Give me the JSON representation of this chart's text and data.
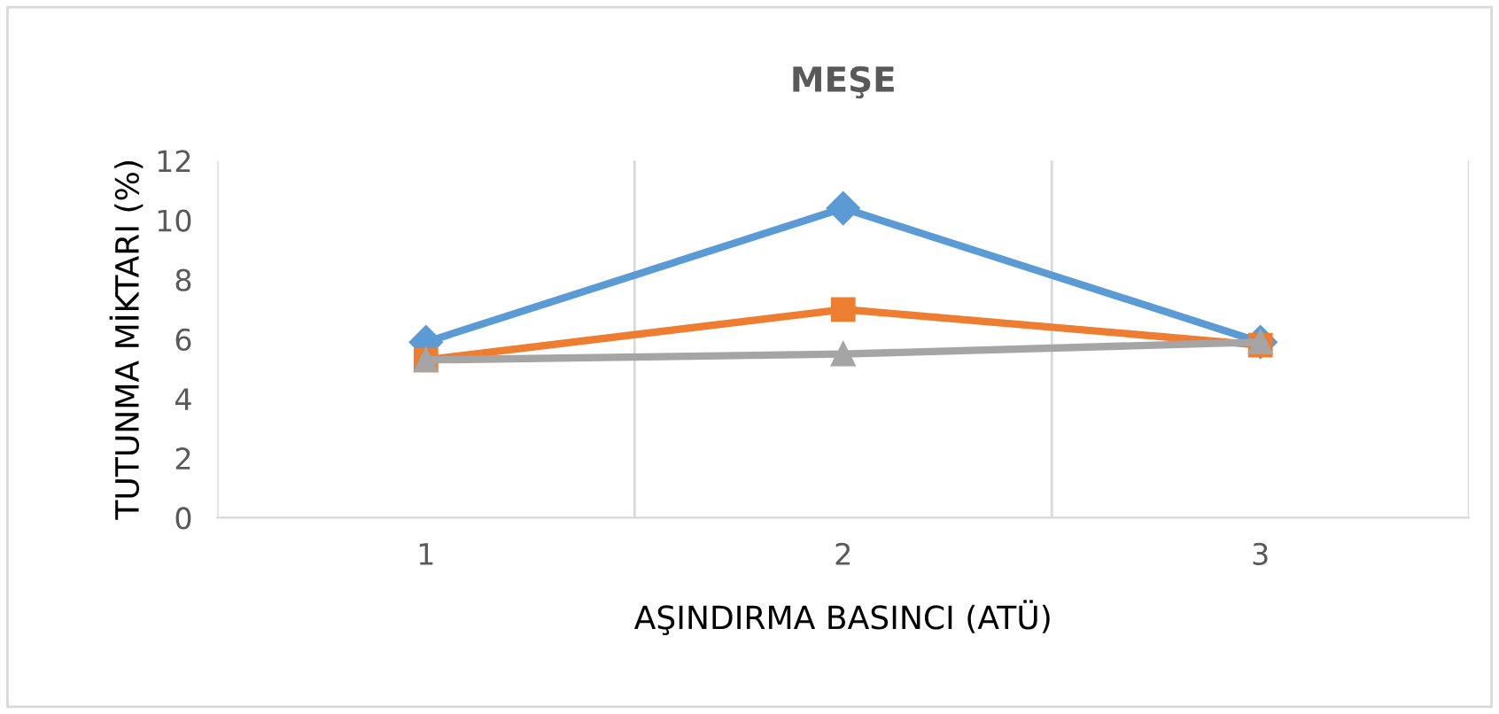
{
  "chart_data": {
    "type": "line",
    "title": "MEŞE",
    "xlabel": "AŞINDIRMA BASINCI (ATÜ)",
    "ylabel": "TUTUNMA MİKTARI (%)",
    "categories": [
      "1",
      "2",
      "3"
    ],
    "series": [
      {
        "color": "#5b9bd5",
        "marker": "diamond",
        "values": [
          5.9,
          10.4,
          5.9
        ]
      },
      {
        "color": "#ed7d31",
        "marker": "square",
        "values": [
          5.3,
          7.0,
          5.8
        ]
      },
      {
        "color": "#a5a5a5",
        "marker": "triangle",
        "values": [
          5.3,
          5.5,
          5.9
        ]
      }
    ],
    "ylim": [
      0,
      12
    ],
    "yticks": [
      0,
      2,
      4,
      6,
      8,
      10,
      12
    ],
    "grid": "x",
    "legend": false,
    "line_style": "solid"
  }
}
